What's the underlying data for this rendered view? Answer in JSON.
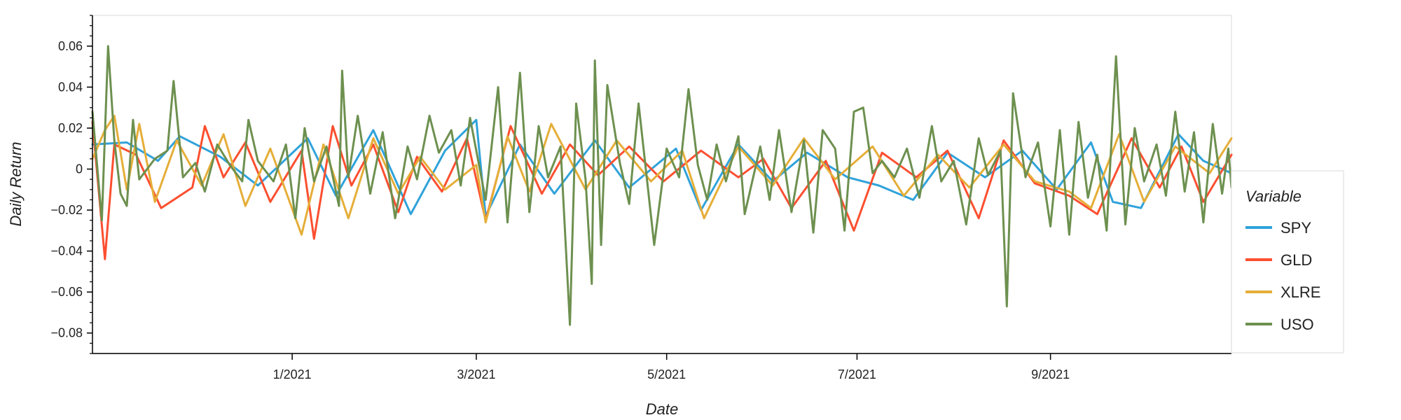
{
  "chart_data": {
    "type": "line",
    "title": "",
    "xlabel": "Date",
    "ylabel": "Daily Return",
    "legend_title": "Variable",
    "legend_position": "right",
    "grid": false,
    "x_range": [
      "2020-10-29",
      "2021-10-29"
    ],
    "ylim": [
      -0.09,
      0.075
    ],
    "x_ticks": [
      {
        "date": "2021-01-01",
        "label": "1/2021"
      },
      {
        "date": "2021-03-01",
        "label": "3/2021"
      },
      {
        "date": "2021-05-01",
        "label": "5/2021"
      },
      {
        "date": "2021-07-01",
        "label": "7/2021"
      },
      {
        "date": "2021-09-01",
        "label": "9/2021"
      }
    ],
    "y_ticks": [
      {
        "value": 0.06,
        "label": "0.06"
      },
      {
        "value": 0.04,
        "label": "0.04"
      },
      {
        "value": 0.02,
        "label": "0.02"
      },
      {
        "value": 0,
        "label": "0"
      },
      {
        "value": -0.02,
        "label": "−0.02"
      },
      {
        "value": -0.04,
        "label": "−0.04"
      },
      {
        "value": -0.06,
        "label": "−0.06"
      },
      {
        "value": -0.08,
        "label": "−0.08"
      }
    ],
    "series": [
      {
        "name": "SPY",
        "color": "#30a2da",
        "points": [
          [
            "2020-10-29",
            0.012
          ],
          [
            "2020-11-09",
            0.013
          ],
          [
            "2020-11-19",
            0.004
          ],
          [
            "2020-11-26",
            0.016
          ],
          [
            "2020-12-09",
            0.006
          ],
          [
            "2020-12-21",
            -0.008
          ],
          [
            "2021-01-06",
            0.015
          ],
          [
            "2021-01-15",
            -0.013
          ],
          [
            "2021-01-27",
            0.019
          ],
          [
            "2021-02-08",
            -0.022
          ],
          [
            "2021-02-19",
            0.009
          ],
          [
            "2021-03-01",
            0.024
          ],
          [
            "2021-03-04",
            -0.023
          ],
          [
            "2021-03-15",
            0.012
          ],
          [
            "2021-03-26",
            -0.012
          ],
          [
            "2021-04-08",
            0.014
          ],
          [
            "2021-04-19",
            -0.009
          ],
          [
            "2021-05-04",
            0.01
          ],
          [
            "2021-05-12",
            -0.02
          ],
          [
            "2021-05-24",
            0.012
          ],
          [
            "2021-06-04",
            -0.006
          ],
          [
            "2021-06-15",
            0.008
          ],
          [
            "2021-06-28",
            -0.004
          ],
          [
            "2021-07-08",
            -0.008
          ],
          [
            "2021-07-19",
            -0.015
          ],
          [
            "2021-07-30",
            0.008
          ],
          [
            "2021-08-11",
            -0.004
          ],
          [
            "2021-08-23",
            0.009
          ],
          [
            "2021-09-03",
            -0.01
          ],
          [
            "2021-09-14",
            0.013
          ],
          [
            "2021-09-21",
            -0.016
          ],
          [
            "2021-09-30",
            -0.019
          ],
          [
            "2021-10-12",
            0.017
          ],
          [
            "2021-10-20",
            0.004
          ],
          [
            "2021-10-29",
            -0.002
          ]
        ]
      },
      {
        "name": "GLD",
        "color": "#fc4f30",
        "points": [
          [
            "2020-10-29",
            0.023
          ],
          [
            "2020-11-02",
            -0.044
          ],
          [
            "2020-11-05",
            0.012
          ],
          [
            "2020-11-12",
            0.007
          ],
          [
            "2020-11-20",
            -0.019
          ],
          [
            "2020-11-30",
            -0.009
          ],
          [
            "2020-12-04",
            0.021
          ],
          [
            "2020-12-10",
            -0.004
          ],
          [
            "2020-12-17",
            0.013
          ],
          [
            "2020-12-25",
            -0.016
          ],
          [
            "2021-01-04",
            0.009
          ],
          [
            "2021-01-08",
            -0.034
          ],
          [
            "2021-01-14",
            0.021
          ],
          [
            "2021-01-20",
            -0.008
          ],
          [
            "2021-01-27",
            0.012
          ],
          [
            "2021-02-04",
            -0.021
          ],
          [
            "2021-02-10",
            0.006
          ],
          [
            "2021-02-18",
            -0.011
          ],
          [
            "2021-02-26",
            0.015
          ],
          [
            "2021-03-04",
            -0.025
          ],
          [
            "2021-03-12",
            0.021
          ],
          [
            "2021-03-22",
            -0.012
          ],
          [
            "2021-03-31",
            0.012
          ],
          [
            "2021-04-09",
            -0.003
          ],
          [
            "2021-04-19",
            0.011
          ],
          [
            "2021-04-30",
            -0.006
          ],
          [
            "2021-05-12",
            0.009
          ],
          [
            "2021-05-24",
            -0.004
          ],
          [
            "2021-06-01",
            0.005
          ],
          [
            "2021-06-10",
            -0.019
          ],
          [
            "2021-06-21",
            0.004
          ],
          [
            "2021-06-30",
            -0.03
          ],
          [
            "2021-07-09",
            0.008
          ],
          [
            "2021-07-20",
            -0.004
          ],
          [
            "2021-07-30",
            0.009
          ],
          [
            "2021-08-09",
            -0.024
          ],
          [
            "2021-08-17",
            0.014
          ],
          [
            "2021-08-27",
            -0.007
          ],
          [
            "2021-09-07",
            -0.013
          ],
          [
            "2021-09-16",
            -0.022
          ],
          [
            "2021-09-27",
            0.015
          ],
          [
            "2021-10-06",
            -0.009
          ],
          [
            "2021-10-13",
            0.011
          ],
          [
            "2021-10-20",
            -0.016
          ],
          [
            "2021-10-29",
            0.007
          ]
        ]
      },
      {
        "name": "XLRE",
        "color": "#e5ae38",
        "points": [
          [
            "2020-10-29",
            0.005
          ],
          [
            "2020-11-02",
            0.019
          ],
          [
            "2020-11-05",
            0.026
          ],
          [
            "2020-11-09",
            -0.01
          ],
          [
            "2020-11-13",
            0.022
          ],
          [
            "2020-11-18",
            -0.016
          ],
          [
            "2020-11-25",
            0.014
          ],
          [
            "2020-12-03",
            -0.008
          ],
          [
            "2020-12-10",
            0.017
          ],
          [
            "2020-12-17",
            -0.018
          ],
          [
            "2020-12-25",
            0.01
          ],
          [
            "2021-01-04",
            -0.032
          ],
          [
            "2021-01-11",
            0.012
          ],
          [
            "2021-01-19",
            -0.024
          ],
          [
            "2021-01-27",
            0.015
          ],
          [
            "2021-02-04",
            -0.012
          ],
          [
            "2021-02-11",
            0.006
          ],
          [
            "2021-02-19",
            -0.01
          ],
          [
            "2021-03-01",
            0.002
          ],
          [
            "2021-03-04",
            -0.026
          ],
          [
            "2021-03-11",
            0.016
          ],
          [
            "2021-03-18",
            -0.011
          ],
          [
            "2021-03-25",
            0.022
          ],
          [
            "2021-04-05",
            -0.01
          ],
          [
            "2021-04-15",
            0.014
          ],
          [
            "2021-04-26",
            -0.006
          ],
          [
            "2021-05-06",
            0.009
          ],
          [
            "2021-05-13",
            -0.024
          ],
          [
            "2021-05-24",
            0.011
          ],
          [
            "2021-06-04",
            -0.008
          ],
          [
            "2021-06-14",
            0.015
          ],
          [
            "2021-06-24",
            -0.005
          ],
          [
            "2021-07-06",
            0.011
          ],
          [
            "2021-07-16",
            -0.013
          ],
          [
            "2021-07-27",
            0.007
          ],
          [
            "2021-08-06",
            -0.009
          ],
          [
            "2021-08-17",
            0.012
          ],
          [
            "2021-08-27",
            -0.006
          ],
          [
            "2021-09-07",
            -0.011
          ],
          [
            "2021-09-14",
            -0.019
          ],
          [
            "2021-09-23",
            0.017
          ],
          [
            "2021-10-01",
            -0.016
          ],
          [
            "2021-10-11",
            0.011
          ],
          [
            "2021-10-22",
            -0.002
          ],
          [
            "2021-10-29",
            0.015
          ]
        ]
      },
      {
        "name": "USO",
        "color": "#6d904f",
        "points": [
          [
            "2020-10-29",
            0.028
          ],
          [
            "2020-11-01",
            -0.025
          ],
          [
            "2020-11-03",
            0.06
          ],
          [
            "2020-11-05",
            0.014
          ],
          [
            "2020-11-07",
            -0.012
          ],
          [
            "2020-11-09",
            -0.018
          ],
          [
            "2020-11-11",
            0.024
          ],
          [
            "2020-11-13",
            -0.005
          ],
          [
            "2020-11-18",
            0.005
          ],
          [
            "2020-11-22",
            0.009
          ],
          [
            "2020-11-24",
            0.043
          ],
          [
            "2020-11-27",
            -0.004
          ],
          [
            "2020-12-01",
            0.003
          ],
          [
            "2020-12-04",
            -0.011
          ],
          [
            "2020-12-08",
            0.012
          ],
          [
            "2020-12-12",
            0.002
          ],
          [
            "2020-12-16",
            -0.006
          ],
          [
            "2020-12-18",
            0.024
          ],
          [
            "2020-12-21",
            0.004
          ],
          [
            "2020-12-26",
            -0.006
          ],
          [
            "2020-12-30",
            0.012
          ],
          [
            "2021-01-02",
            -0.024
          ],
          [
            "2021-01-05",
            0.02
          ],
          [
            "2021-01-08",
            -0.006
          ],
          [
            "2021-01-12",
            0.011
          ],
          [
            "2021-01-16",
            -0.018
          ],
          [
            "2021-01-17",
            0.048
          ],
          [
            "2021-01-19",
            -0.004
          ],
          [
            "2021-01-22",
            0.026
          ],
          [
            "2021-01-26",
            -0.012
          ],
          [
            "2021-01-30",
            0.018
          ],
          [
            "2021-02-03",
            -0.024
          ],
          [
            "2021-02-07",
            0.011
          ],
          [
            "2021-02-10",
            -0.005
          ],
          [
            "2021-02-14",
            0.026
          ],
          [
            "2021-02-17",
            0.008
          ],
          [
            "2021-02-21",
            0.019
          ],
          [
            "2021-02-24",
            -0.008
          ],
          [
            "2021-02-27",
            0.025
          ],
          [
            "2021-03-04",
            -0.015
          ],
          [
            "2021-03-08",
            0.04
          ],
          [
            "2021-03-11",
            -0.026
          ],
          [
            "2021-03-15",
            0.047
          ],
          [
            "2021-03-18",
            -0.021
          ],
          [
            "2021-03-21",
            0.021
          ],
          [
            "2021-03-24",
            -0.004
          ],
          [
            "2021-03-28",
            0.011
          ],
          [
            "2021-03-31",
            -0.076
          ],
          [
            "2021-04-02",
            0.032
          ],
          [
            "2021-04-05",
            -0.005
          ],
          [
            "2021-04-07",
            -0.056
          ],
          [
            "2021-04-08",
            0.053
          ],
          [
            "2021-04-10",
            -0.037
          ],
          [
            "2021-04-12",
            0.041
          ],
          [
            "2021-04-16",
            0.003
          ],
          [
            "2021-04-19",
            -0.017
          ],
          [
            "2021-04-22",
            0.032
          ],
          [
            "2021-04-27",
            -0.037
          ],
          [
            "2021-05-01",
            0.01
          ],
          [
            "2021-05-05",
            -0.004
          ],
          [
            "2021-05-08",
            0.039
          ],
          [
            "2021-05-11",
            0.002
          ],
          [
            "2021-05-14",
            -0.015
          ],
          [
            "2021-05-17",
            0.012
          ],
          [
            "2021-05-20",
            -0.006
          ],
          [
            "2021-05-24",
            0.016
          ],
          [
            "2021-05-26",
            -0.022
          ],
          [
            "2021-05-31",
            0.011
          ],
          [
            "2021-06-03",
            -0.015
          ],
          [
            "2021-06-06",
            0.019
          ],
          [
            "2021-06-10",
            -0.021
          ],
          [
            "2021-06-14",
            0.014
          ],
          [
            "2021-06-17",
            -0.031
          ],
          [
            "2021-06-20",
            0.019
          ],
          [
            "2021-06-24",
            0.01
          ],
          [
            "2021-06-27",
            -0.03
          ],
          [
            "2021-06-30",
            0.028
          ],
          [
            "2021-07-03",
            0.03
          ],
          [
            "2021-07-06",
            -0.002
          ],
          [
            "2021-07-09",
            0.004
          ],
          [
            "2021-07-13",
            -0.004
          ],
          [
            "2021-07-17",
            0.01
          ],
          [
            "2021-07-21",
            -0.014
          ],
          [
            "2021-07-25",
            0.021
          ],
          [
            "2021-07-28",
            -0.006
          ],
          [
            "2021-08-01",
            0.004
          ],
          [
            "2021-08-05",
            -0.027
          ],
          [
            "2021-08-09",
            0.015
          ],
          [
            "2021-08-12",
            -0.003
          ],
          [
            "2021-08-16",
            0.009
          ],
          [
            "2021-08-18",
            -0.067
          ],
          [
            "2021-08-20",
            0.037
          ],
          [
            "2021-08-24",
            -0.004
          ],
          [
            "2021-08-28",
            0.013
          ],
          [
            "2021-09-01",
            -0.028
          ],
          [
            "2021-09-04",
            0.019
          ],
          [
            "2021-09-07",
            -0.032
          ],
          [
            "2021-09-10",
            0.023
          ],
          [
            "2021-09-13",
            -0.014
          ],
          [
            "2021-09-16",
            0.007
          ],
          [
            "2021-09-19",
            -0.03
          ],
          [
            "2021-09-22",
            0.055
          ],
          [
            "2021-09-25",
            -0.027
          ],
          [
            "2021-09-28",
            0.02
          ],
          [
            "2021-10-01",
            -0.006
          ],
          [
            "2021-10-05",
            0.012
          ],
          [
            "2021-10-08",
            -0.013
          ],
          [
            "2021-10-11",
            0.028
          ],
          [
            "2021-10-14",
            -0.011
          ],
          [
            "2021-10-17",
            0.018
          ],
          [
            "2021-10-20",
            -0.026
          ],
          [
            "2021-10-23",
            0.022
          ],
          [
            "2021-10-26",
            -0.012
          ],
          [
            "2021-10-28",
            0.01
          ],
          [
            "2021-10-29",
            -0.009
          ]
        ]
      }
    ]
  }
}
